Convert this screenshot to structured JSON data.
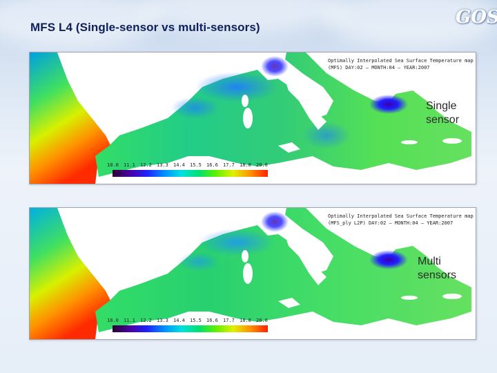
{
  "slide": {
    "title": "MFS L4 (Single-sensor vs  multi-sensors)",
    "logo_text": "GOS"
  },
  "maps": [
    {
      "label_line1": "Single",
      "label_line2": "sensor",
      "header_line1": "Optimally Interpolated Sea Surface Temperature map",
      "header_line2": "(MFS) DAY:02 – MONTH:04 – YEAR:2007"
    },
    {
      "label_line1": "Multi",
      "label_line2": "sensors",
      "header_line1": "Optimally Interpolated Sea Surface Temperature map",
      "header_line2": "(MFS_ply L2P) DAY:02 – MONTH:04 – YEAR:2007"
    }
  ],
  "colorbar": {
    "ticks": [
      "10.0",
      "11.1",
      "12.2",
      "13.3",
      "14.4",
      "15.5",
      "16.6",
      "17.7",
      "18.8",
      "20.0"
    ],
    "colors": [
      "#2b0033",
      "#4a00a0",
      "#2020ff",
      "#0090ff",
      "#00e0e0",
      "#00e070",
      "#60f000",
      "#e0f000",
      "#ff9000",
      "#ff2000"
    ]
  }
}
